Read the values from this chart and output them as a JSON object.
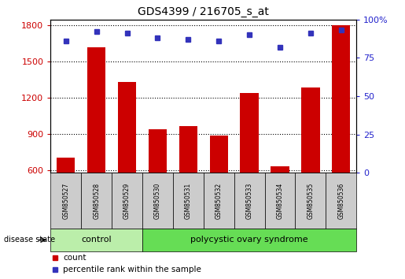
{
  "title": "GDS4399 / 216705_s_at",
  "samples": [
    "GSM850527",
    "GSM850528",
    "GSM850529",
    "GSM850530",
    "GSM850531",
    "GSM850532",
    "GSM850533",
    "GSM850534",
    "GSM850535",
    "GSM850536"
  ],
  "count_values": [
    710,
    1620,
    1330,
    940,
    970,
    890,
    1240,
    635,
    1290,
    1800
  ],
  "percentile_values": [
    86,
    92,
    91,
    88,
    87,
    86,
    90,
    82,
    91,
    93
  ],
  "ylim_left": [
    580,
    1850
  ],
  "ylim_right": [
    0,
    100
  ],
  "yticks_left": [
    600,
    900,
    1200,
    1500,
    1800
  ],
  "yticks_right": [
    0,
    25,
    50,
    75,
    100
  ],
  "bar_color": "#cc0000",
  "dot_color": "#3333bb",
  "group_labels": [
    "control",
    "polycystic ovary syndrome"
  ],
  "group_ranges": [
    [
      0,
      3
    ],
    [
      3,
      10
    ]
  ],
  "group_color_control": "#bbeeaa",
  "group_color_pcos": "#66dd55",
  "disease_state_label": "disease state",
  "legend_count": "count",
  "legend_percentile": "percentile rank within the sample",
  "tick_color_left": "#cc0000",
  "tick_color_right": "#2222cc",
  "sample_bg_color": "#cccccc"
}
